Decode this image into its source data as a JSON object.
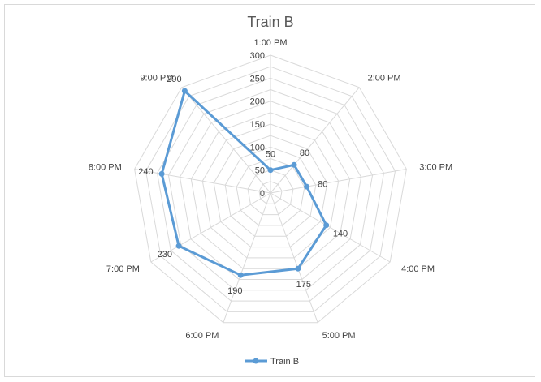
{
  "chart_data": {
    "type": "radar",
    "title": "Train B",
    "categories": [
      "1:00 PM",
      "2:00 PM",
      "3:00 PM",
      "4:00 PM",
      "5:00 PM",
      "6:00 PM",
      "7:00 PM",
      "8:00 PM",
      "9:00 PM"
    ],
    "series": [
      {
        "name": "Train B",
        "values": [
          50,
          80,
          80,
          140,
          175,
          190,
          230,
          240,
          290
        ],
        "color": "#5b9bd5"
      }
    ],
    "radial_ticks": [
      "0",
      "50",
      "100",
      "150",
      "200",
      "250",
      "300"
    ],
    "rmax": 300,
    "minor_step": 25,
    "data_labels": true,
    "legend": "bottom",
    "grid": true
  }
}
